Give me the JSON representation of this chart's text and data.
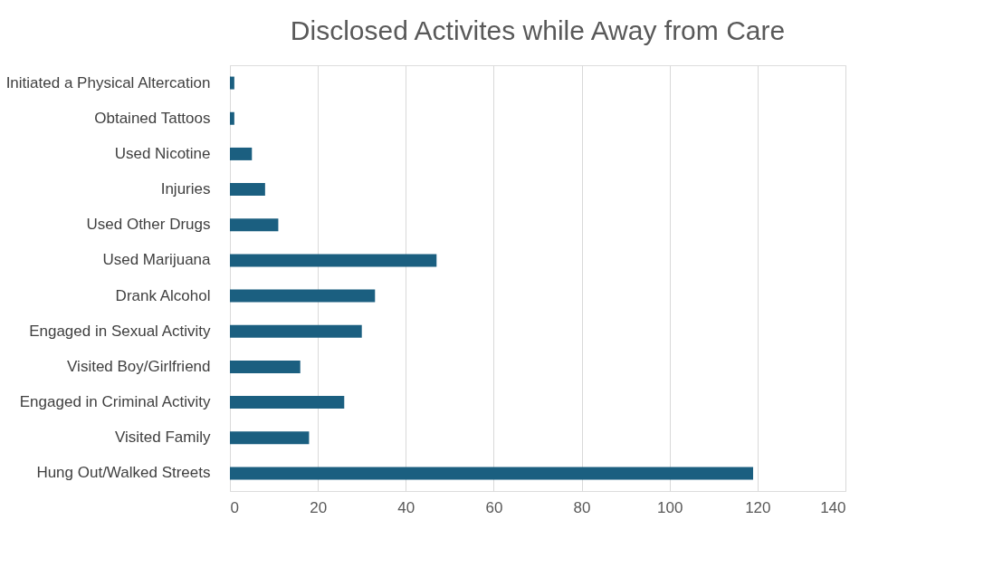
{
  "chart_data": {
    "type": "bar",
    "orientation": "horizontal",
    "title": "Disclosed Activites while Away from Care",
    "categories": [
      "Initiated a Physical Altercation",
      "Obtained Tattoos",
      "Used Nicotine",
      "Injuries",
      "Used Other Drugs",
      "Used Marijuana",
      "Drank Alcohol",
      "Engaged in Sexual Activity",
      "Visited Boy/Girlfriend",
      "Engaged in Criminal Activity",
      "Visited Family",
      "Hung Out/Walked Streets"
    ],
    "values": [
      1,
      1,
      5,
      8,
      11,
      47,
      33,
      30,
      16,
      26,
      18,
      119
    ],
    "color": "#1b5f80",
    "xlim": [
      0,
      140
    ],
    "xticks": [
      0,
      20,
      40,
      60,
      80,
      100,
      120,
      140
    ],
    "grid": "x"
  }
}
